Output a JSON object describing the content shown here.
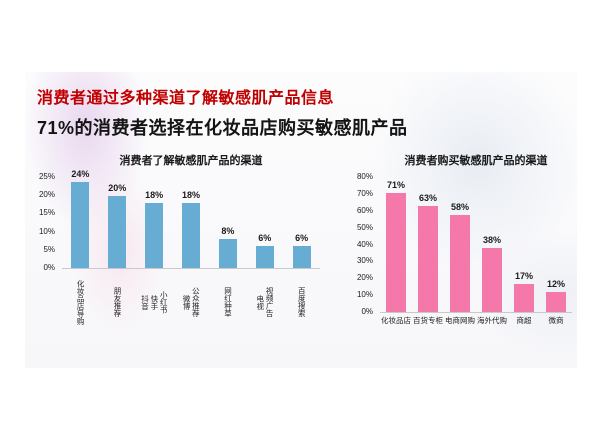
{
  "headline": {
    "line1": "消费者通过多种渠道了解敏感肌产品信息",
    "line1_color": "#c00000",
    "line2": "71%的消费者选择在化妆品店购买敏感肌产品",
    "line2_color": "#141414"
  },
  "chart_data": [
    {
      "type": "bar",
      "title": "消费者了解敏感肌产品的渠道",
      "categories": [
        "化妆品店导购",
        "朋友推荐",
        "抖音 快手 小红书",
        "微博 公众推荐",
        "网红种草",
        "电视 视频广告",
        "百度搜索"
      ],
      "values": [
        24,
        20,
        18,
        18,
        8,
        6,
        6
      ],
      "value_labels": [
        "24%",
        "20%",
        "18%",
        "18%",
        "8%",
        "6%",
        "6%"
      ],
      "yticks": [
        "0%",
        "5%",
        "10%",
        "15%",
        "20%",
        "25%"
      ],
      "ylim": [
        0,
        25
      ],
      "ytick_step": 5,
      "bar_color": "#67add3",
      "grid": false,
      "legend": "none",
      "xlabel": "",
      "ylabel": ""
    },
    {
      "type": "bar",
      "title": "消费者购买敏感肌产品的渠道",
      "categories": [
        "化妆品店",
        "百货专柜",
        "电商网购",
        "海外代购",
        "商超",
        "微商"
      ],
      "values": [
        71,
        63,
        58,
        38,
        17,
        12
      ],
      "value_labels": [
        "71%",
        "63%",
        "58%",
        "38%",
        "17%",
        "12%"
      ],
      "yticks": [
        "0%",
        "10%",
        "20%",
        "30%",
        "40%",
        "50%",
        "60%",
        "70%",
        "80%"
      ],
      "ylim": [
        0,
        80
      ],
      "ytick_step": 10,
      "bar_color": "#f478a9",
      "grid": false,
      "legend": "none",
      "xlabel": "",
      "ylabel": ""
    }
  ]
}
